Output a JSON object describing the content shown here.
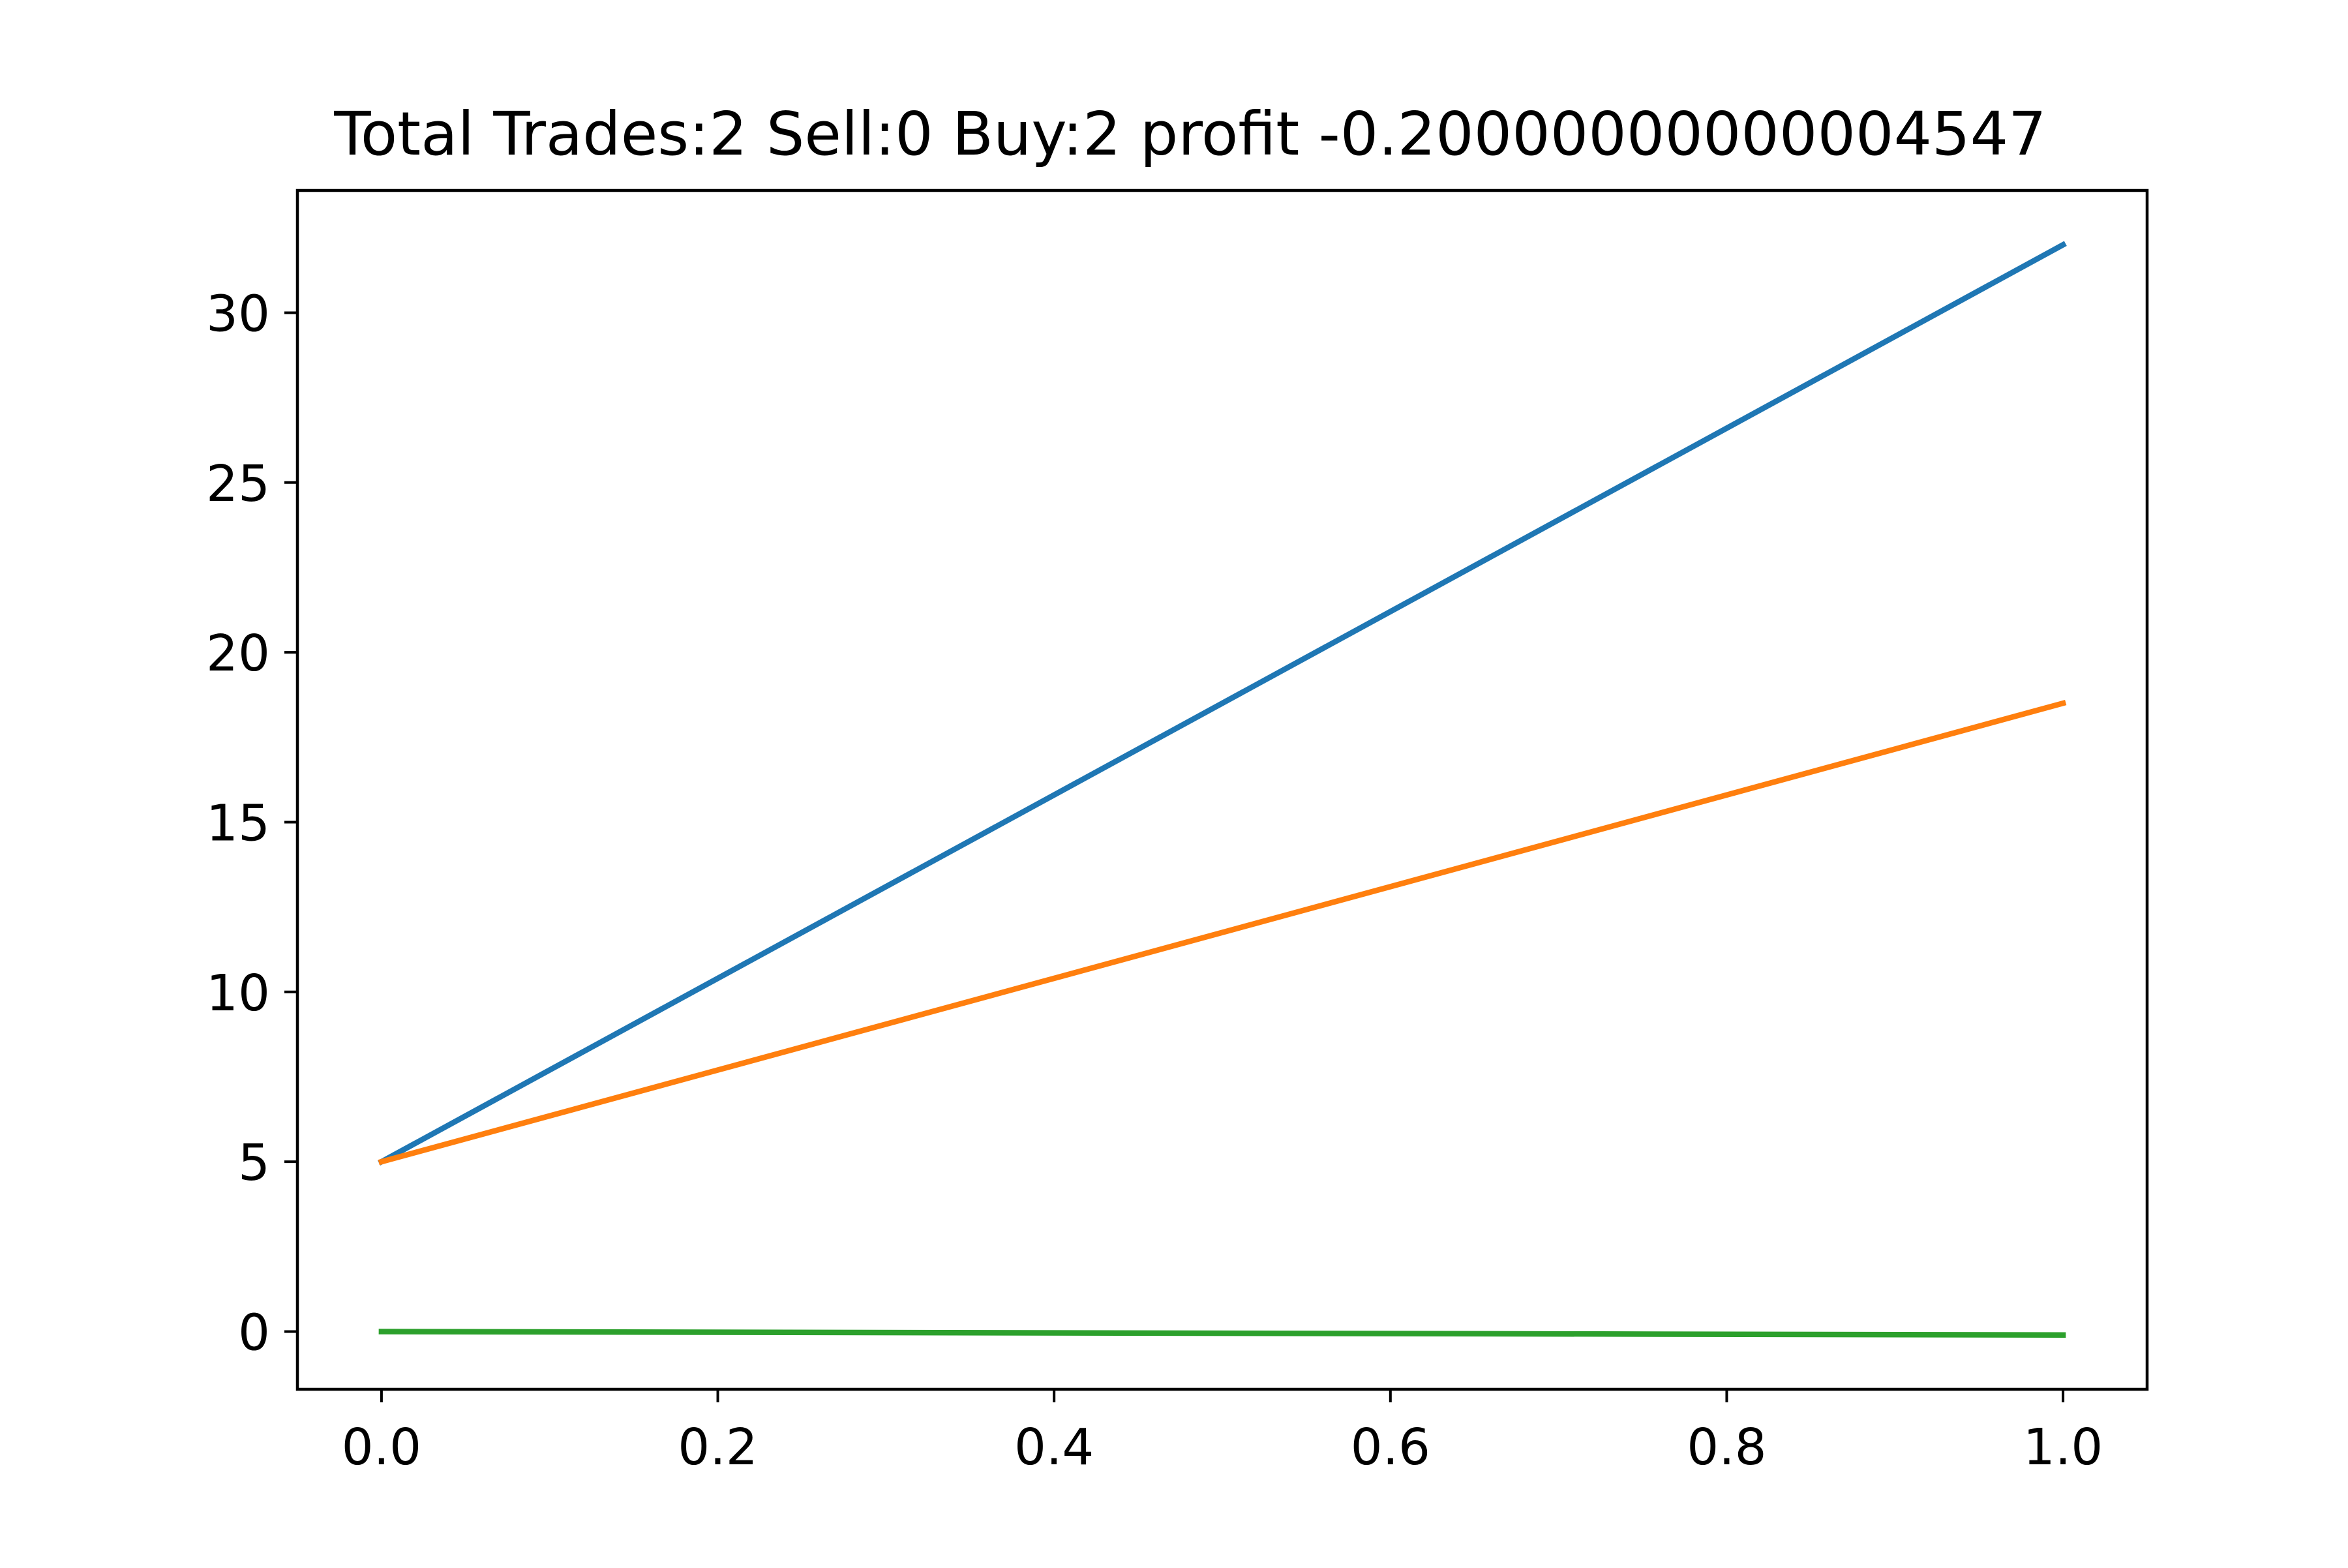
{
  "chart_data": {
    "type": "line",
    "title": "Total Trades:2 Sell:0 Buy:2 profit -0.20000000000004547",
    "xlabel": "",
    "ylabel": "",
    "x": [
      0.0,
      1.0
    ],
    "series": [
      {
        "values": [
          5.0,
          32.0
        ],
        "color": "#1f77b4"
      },
      {
        "values": [
          5.0,
          18.5
        ],
        "color": "#ff7f0e"
      },
      {
        "values": [
          0.0,
          -0.1
        ],
        "color": "#2ca02c"
      }
    ],
    "xlim": [
      -0.05,
      1.05
    ],
    "ylim": [
      -1.7,
      33.6
    ],
    "xticks": [
      0.0,
      0.2,
      0.4,
      0.6,
      0.8,
      1.0
    ],
    "xtick_labels": [
      "0.0",
      "0.2",
      "0.4",
      "0.6",
      "0.8",
      "1.0"
    ],
    "yticks": [
      0,
      5,
      10,
      15,
      20,
      25,
      30
    ],
    "ytick_labels": [
      "0",
      "5",
      "10",
      "15",
      "20",
      "25",
      "30"
    ],
    "grid": false,
    "legend": "none"
  }
}
